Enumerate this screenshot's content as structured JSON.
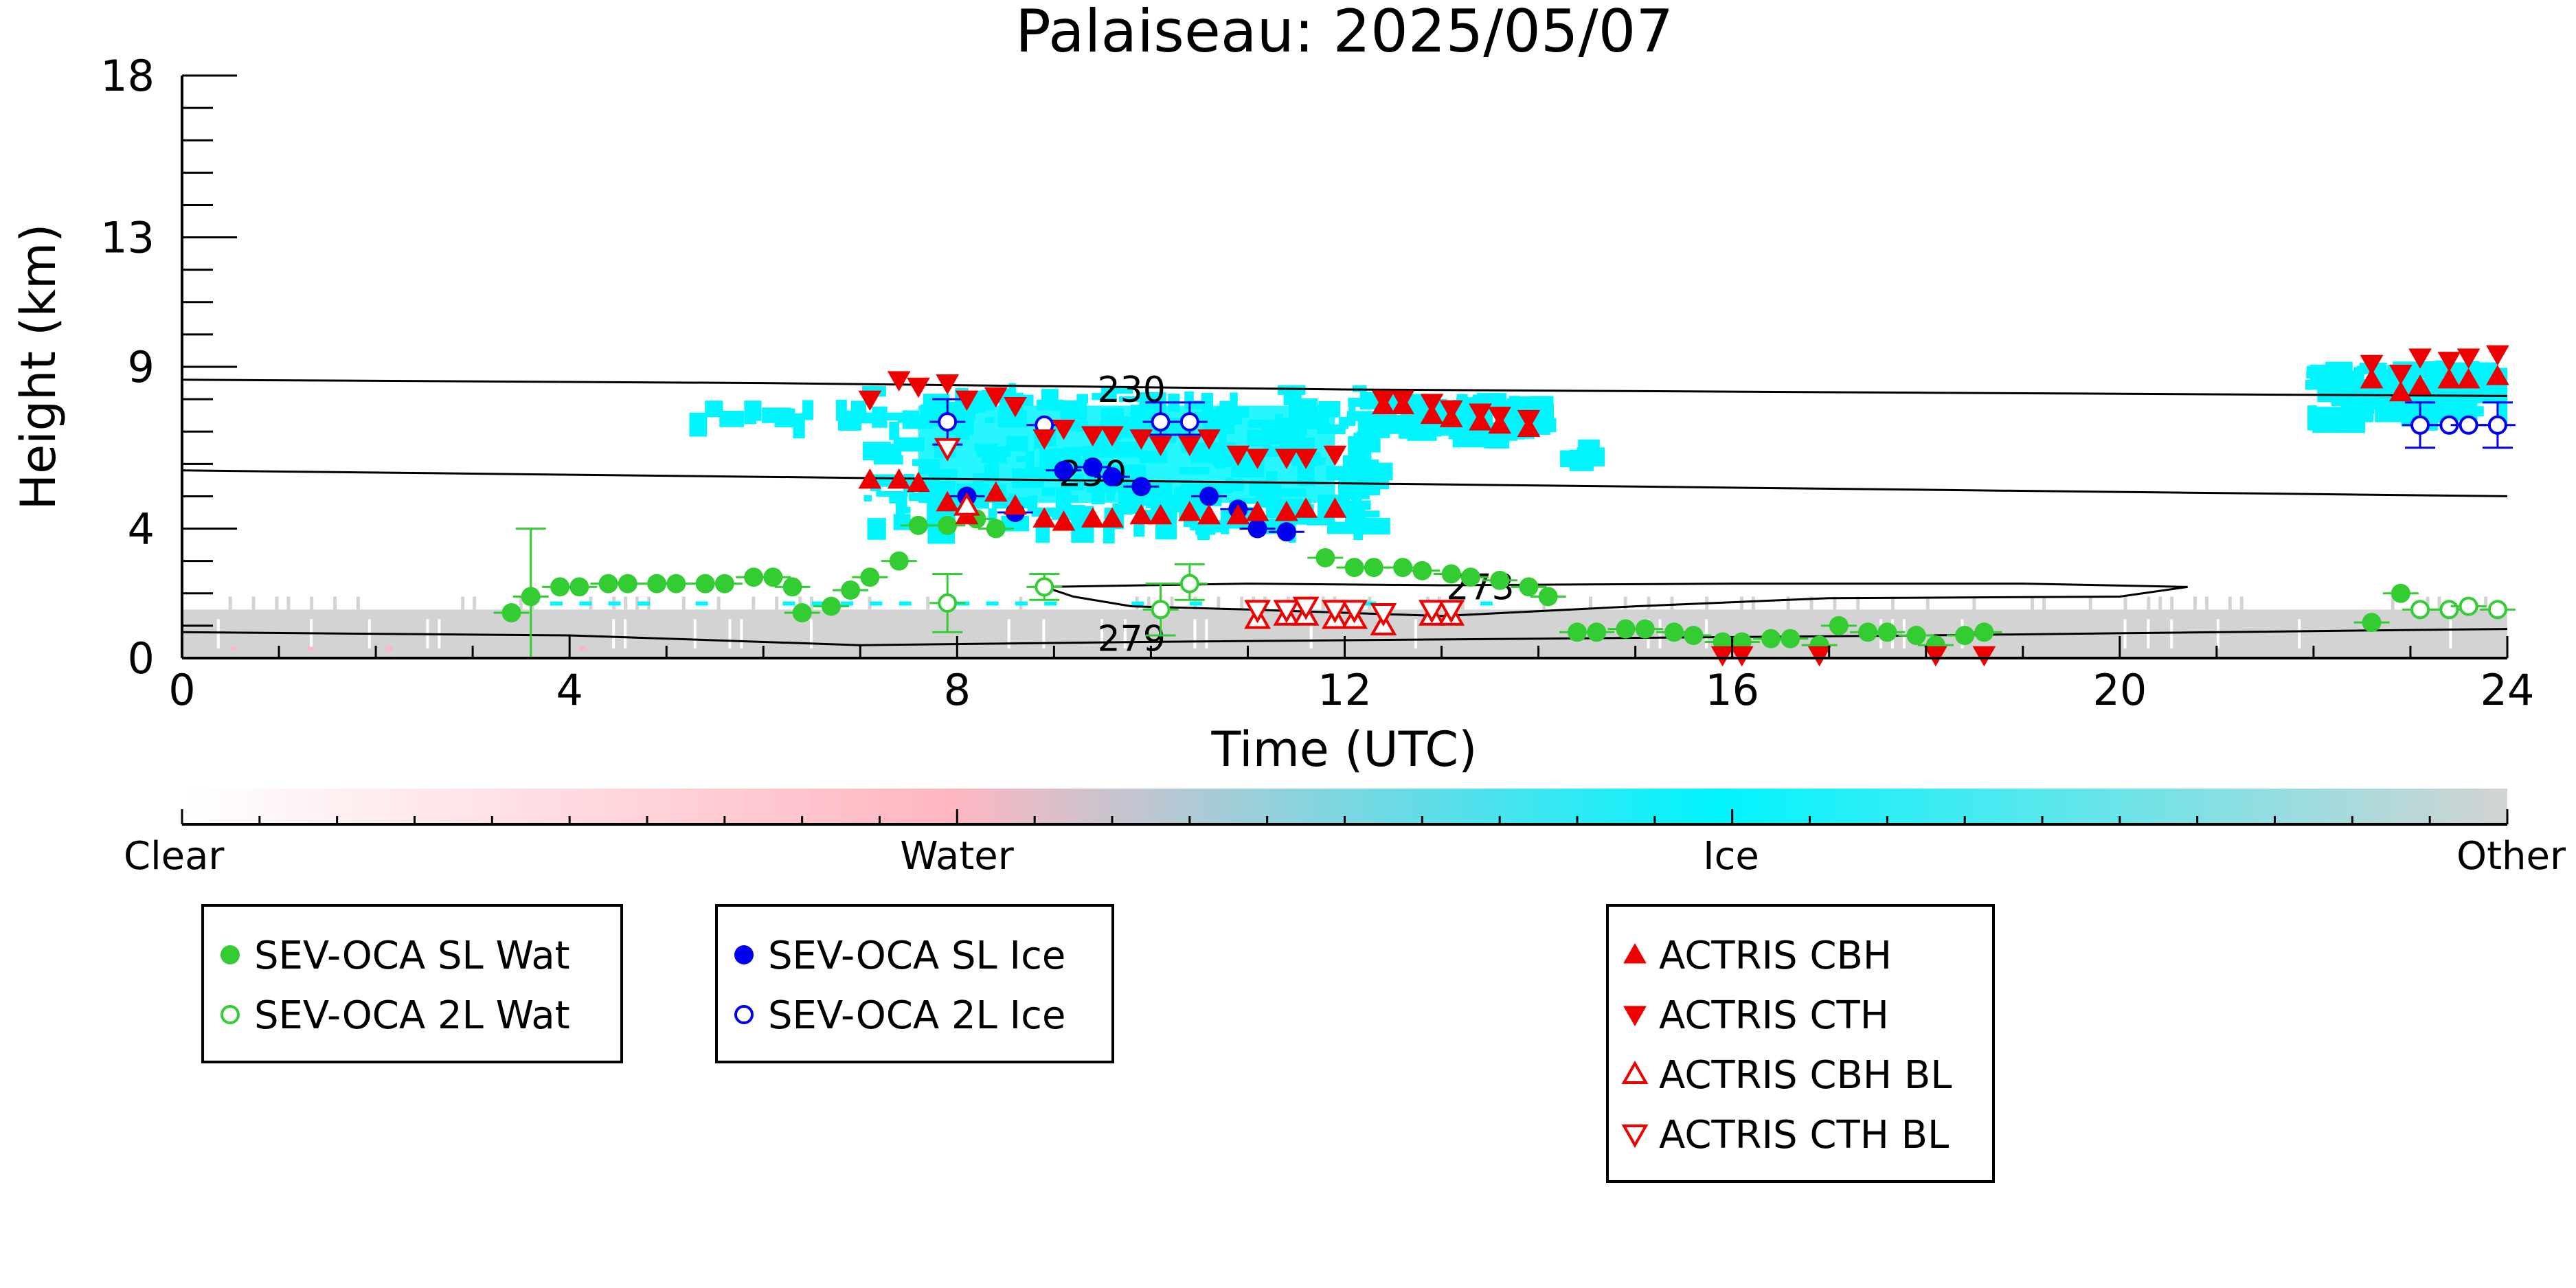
{
  "chart_data": {
    "type": "scatter",
    "title": "Palaiseau: 2025/05/07",
    "xlabel": "Time (UTC)",
    "ylabel": "Height (km)",
    "xlim": [
      0,
      24
    ],
    "ylim": [
      0,
      18
    ],
    "x_ticks": [
      0,
      4,
      8,
      12,
      16,
      20,
      24
    ],
    "y_ticks": [
      0,
      4,
      9,
      13,
      18
    ],
    "grid": false,
    "colors": {
      "clear": "#ffffff",
      "water": "#ffb6c1",
      "ice": "#00f5ff",
      "other": "#d3d3d3",
      "sl_wat": "#33cc33",
      "sl_ice": "#0000ee",
      "actris": "#ee0000",
      "contour": "#000000"
    },
    "colorbar": {
      "labels": [
        "Clear",
        "Water",
        "Ice",
        "Other"
      ]
    },
    "contours": [
      {
        "label": "230",
        "label_at": [
          9.8,
          8.3
        ],
        "points": [
          [
            0,
            8.6
          ],
          [
            6,
            8.5
          ],
          [
            12,
            8.3
          ],
          [
            18,
            8.2
          ],
          [
            24,
            8.1
          ]
        ]
      },
      {
        "label": "250",
        "label_at": [
          9.4,
          5.7
        ],
        "points": [
          [
            0,
            5.8
          ],
          [
            6,
            5.6
          ],
          [
            12,
            5.4
          ],
          [
            18,
            5.2
          ],
          [
            24,
            5.0
          ]
        ]
      },
      {
        "label": "273",
        "label_at": [
          13.4,
          2.2
        ],
        "points": [
          [
            8.9,
            2.2
          ],
          [
            11,
            2.3
          ],
          [
            13,
            2.25
          ],
          [
            16,
            2.3
          ],
          [
            19,
            2.3
          ],
          [
            20.7,
            2.2
          ],
          [
            20,
            1.9
          ],
          [
            17,
            1.85
          ],
          [
            15,
            1.6
          ],
          [
            13,
            1.3
          ],
          [
            11,
            1.5
          ],
          [
            9.8,
            1.6
          ],
          [
            9.2,
            1.9
          ],
          [
            8.9,
            2.2
          ]
        ]
      },
      {
        "label": "279",
        "label_at": [
          9.8,
          0.6
        ],
        "points": [
          [
            0,
            0.8
          ],
          [
            4,
            0.7
          ],
          [
            7,
            0.4
          ],
          [
            10,
            0.5
          ],
          [
            14,
            0.6
          ],
          [
            18,
            0.7
          ],
          [
            24,
            0.9
          ]
        ]
      }
    ],
    "series": [
      {
        "name": "SEV-OCA SL Wat",
        "marker": "filled-circle",
        "color": "#33cc33",
        "points": [
          [
            3.4,
            1.4
          ],
          [
            3.6,
            1.9
          ],
          [
            3.9,
            2.2
          ],
          [
            4.1,
            2.2
          ],
          [
            4.4,
            2.3
          ],
          [
            4.6,
            2.3
          ],
          [
            4.9,
            2.3
          ],
          [
            5.1,
            2.3
          ],
          [
            5.4,
            2.3
          ],
          [
            5.6,
            2.3
          ],
          [
            5.9,
            2.5
          ],
          [
            6.1,
            2.5
          ],
          [
            6.3,
            2.2
          ],
          [
            6.4,
            1.4
          ],
          [
            6.7,
            1.6
          ],
          [
            6.9,
            2.1
          ],
          [
            7.1,
            2.5
          ],
          [
            7.4,
            3.0
          ],
          [
            7.6,
            4.1
          ],
          [
            7.9,
            4.1
          ],
          [
            8.2,
            4.3
          ],
          [
            8.4,
            4.0
          ],
          [
            11.8,
            3.1
          ],
          [
            12.1,
            2.8
          ],
          [
            12.3,
            2.8
          ],
          [
            12.6,
            2.8
          ],
          [
            12.8,
            2.7
          ],
          [
            13.1,
            2.6
          ],
          [
            13.3,
            2.5
          ],
          [
            13.6,
            2.4
          ],
          [
            13.9,
            2.2
          ],
          [
            14.1,
            1.9
          ],
          [
            14.4,
            0.8
          ],
          [
            14.6,
            0.8
          ],
          [
            14.9,
            0.9
          ],
          [
            15.1,
            0.9
          ],
          [
            15.4,
            0.8
          ],
          [
            15.6,
            0.7
          ],
          [
            15.9,
            0.5
          ],
          [
            16.1,
            0.5
          ],
          [
            16.4,
            0.6
          ],
          [
            16.6,
            0.6
          ],
          [
            16.9,
            0.4
          ],
          [
            17.1,
            1.0
          ],
          [
            17.4,
            0.8
          ],
          [
            17.6,
            0.8
          ],
          [
            17.9,
            0.7
          ],
          [
            18.1,
            0.4
          ],
          [
            18.4,
            0.7
          ],
          [
            18.6,
            0.8
          ],
          [
            22.6,
            1.1
          ],
          [
            22.9,
            2.0
          ]
        ],
        "error_bars": [
          {
            "x": 3.6,
            "low": 0.0,
            "high": 4.0
          }
        ]
      },
      {
        "name": "SEV-OCA 2L Wat",
        "marker": "open-circle",
        "color": "#33cc33",
        "points": [
          [
            7.9,
            1.7
          ],
          [
            8.9,
            2.2
          ],
          [
            10.1,
            1.5
          ],
          [
            10.4,
            2.3
          ],
          [
            23.1,
            1.5
          ],
          [
            23.4,
            1.5
          ],
          [
            23.6,
            1.6
          ],
          [
            23.9,
            1.5
          ]
        ],
        "error_bars": [
          {
            "x": 7.9,
            "low": 0.8,
            "high": 2.6
          },
          {
            "x": 8.9,
            "low": 1.8,
            "high": 2.6
          },
          {
            "x": 10.1,
            "low": 0.7,
            "high": 2.3
          },
          {
            "x": 10.4,
            "low": 1.8,
            "high": 2.9
          }
        ]
      },
      {
        "name": "SEV-OCA SL Ice",
        "marker": "filled-circle",
        "color": "#0000ee",
        "points": [
          [
            8.1,
            5.0
          ],
          [
            8.6,
            4.5
          ],
          [
            9.1,
            5.8
          ],
          [
            9.4,
            5.9
          ],
          [
            9.6,
            5.6
          ],
          [
            9.9,
            5.3
          ],
          [
            10.6,
            5.0
          ],
          [
            10.9,
            4.6
          ],
          [
            11.1,
            4.0
          ],
          [
            11.4,
            3.9
          ]
        ]
      },
      {
        "name": "SEV-OCA 2L Ice",
        "marker": "open-circle",
        "color": "#0000ee",
        "points": [
          [
            7.9,
            7.3
          ],
          [
            8.9,
            7.2
          ],
          [
            10.1,
            7.3
          ],
          [
            10.4,
            7.3
          ],
          [
            23.1,
            7.2
          ],
          [
            23.4,
            7.2
          ],
          [
            23.6,
            7.2
          ],
          [
            23.9,
            7.2
          ]
        ],
        "error_bars": [
          {
            "x": 7.9,
            "low": 6.6,
            "high": 8.0
          },
          {
            "x": 10.1,
            "low": 6.9,
            "high": 7.9
          },
          {
            "x": 10.4,
            "low": 6.9,
            "high": 7.9
          },
          {
            "x": 23.1,
            "low": 6.5,
            "high": 7.9
          },
          {
            "x": 23.9,
            "low": 6.5,
            "high": 7.9
          }
        ]
      },
      {
        "name": "ACTRIS CBH",
        "marker": "filled-triangle-up",
        "color": "#ee0000",
        "points": [
          [
            7.1,
            5.5
          ],
          [
            7.4,
            5.5
          ],
          [
            7.6,
            5.4
          ],
          [
            7.9,
            4.8
          ],
          [
            8.1,
            4.4
          ],
          [
            8.4,
            5.1
          ],
          [
            8.6,
            4.7
          ],
          [
            8.9,
            4.3
          ],
          [
            9.1,
            4.2
          ],
          [
            9.4,
            4.3
          ],
          [
            9.6,
            4.3
          ],
          [
            9.9,
            4.4
          ],
          [
            10.1,
            4.4
          ],
          [
            10.4,
            4.5
          ],
          [
            10.6,
            4.4
          ],
          [
            10.9,
            4.4
          ],
          [
            11.1,
            4.5
          ],
          [
            11.4,
            4.5
          ],
          [
            11.6,
            4.6
          ],
          [
            11.9,
            4.6
          ],
          [
            12.4,
            7.8
          ],
          [
            12.6,
            7.8
          ],
          [
            12.9,
            7.5
          ],
          [
            13.1,
            7.4
          ],
          [
            13.4,
            7.3
          ],
          [
            13.6,
            7.2
          ],
          [
            13.9,
            7.1
          ],
          [
            22.6,
            8.6
          ],
          [
            22.9,
            8.2
          ],
          [
            23.1,
            8.4
          ],
          [
            23.4,
            8.6
          ],
          [
            23.6,
            8.6
          ],
          [
            23.9,
            8.7
          ]
        ]
      },
      {
        "name": "ACTRIS CTH",
        "marker": "filled-triangle-down",
        "color": "#ee0000",
        "points": [
          [
            7.1,
            8.0
          ],
          [
            7.4,
            8.6
          ],
          [
            7.6,
            8.4
          ],
          [
            7.9,
            8.5
          ],
          [
            8.1,
            8.0
          ],
          [
            8.4,
            8.1
          ],
          [
            8.6,
            7.8
          ],
          [
            8.9,
            6.8
          ],
          [
            9.1,
            7.1
          ],
          [
            9.4,
            6.9
          ],
          [
            9.6,
            6.9
          ],
          [
            9.9,
            6.8
          ],
          [
            10.1,
            6.6
          ],
          [
            10.4,
            6.6
          ],
          [
            10.6,
            6.8
          ],
          [
            10.9,
            6.3
          ],
          [
            11.1,
            6.2
          ],
          [
            11.4,
            6.2
          ],
          [
            11.6,
            6.2
          ],
          [
            11.9,
            6.3
          ],
          [
            12.4,
            8.0
          ],
          [
            12.6,
            8.0
          ],
          [
            12.9,
            7.9
          ],
          [
            13.1,
            7.7
          ],
          [
            13.4,
            7.6
          ],
          [
            13.6,
            7.5
          ],
          [
            13.9,
            7.4
          ],
          [
            15.9,
            0.1
          ],
          [
            16.1,
            0.1
          ],
          [
            16.9,
            0.1
          ],
          [
            18.1,
            0.1
          ],
          [
            18.6,
            0.1
          ],
          [
            22.6,
            9.1
          ],
          [
            22.9,
            8.8
          ],
          [
            23.1,
            9.3
          ],
          [
            23.4,
            9.2
          ],
          [
            23.6,
            9.3
          ],
          [
            23.9,
            9.4
          ]
        ]
      },
      {
        "name": "ACTRIS CBH BL",
        "marker": "open-triangle-up",
        "color": "#ee0000",
        "points": [
          [
            8.1,
            4.7
          ],
          [
            11.1,
            1.2
          ],
          [
            11.4,
            1.3
          ],
          [
            11.6,
            1.3
          ],
          [
            11.9,
            1.2
          ],
          [
            12.1,
            1.2
          ],
          [
            12.4,
            1.0
          ],
          [
            12.9,
            1.3
          ],
          [
            13.1,
            1.3
          ]
        ]
      },
      {
        "name": "ACTRIS CTH BL",
        "marker": "open-triangle-down",
        "color": "#ee0000",
        "points": [
          [
            7.9,
            6.5
          ],
          [
            11.1,
            1.5
          ],
          [
            11.4,
            1.5
          ],
          [
            11.6,
            1.6
          ],
          [
            11.9,
            1.5
          ],
          [
            12.1,
            1.5
          ],
          [
            12.4,
            1.4
          ],
          [
            12.9,
            1.5
          ],
          [
            13.1,
            1.5
          ]
        ]
      }
    ],
    "legend_groups": [
      [
        "SEV-OCA SL Wat",
        "SEV-OCA 2L Wat"
      ],
      [
        "SEV-OCA SL Ice",
        "SEV-OCA 2L Ice"
      ],
      [
        "ACTRIS CBH",
        "ACTRIS CTH",
        "ACTRIS CBH BL",
        "ACTRIS CTH BL"
      ]
    ]
  }
}
